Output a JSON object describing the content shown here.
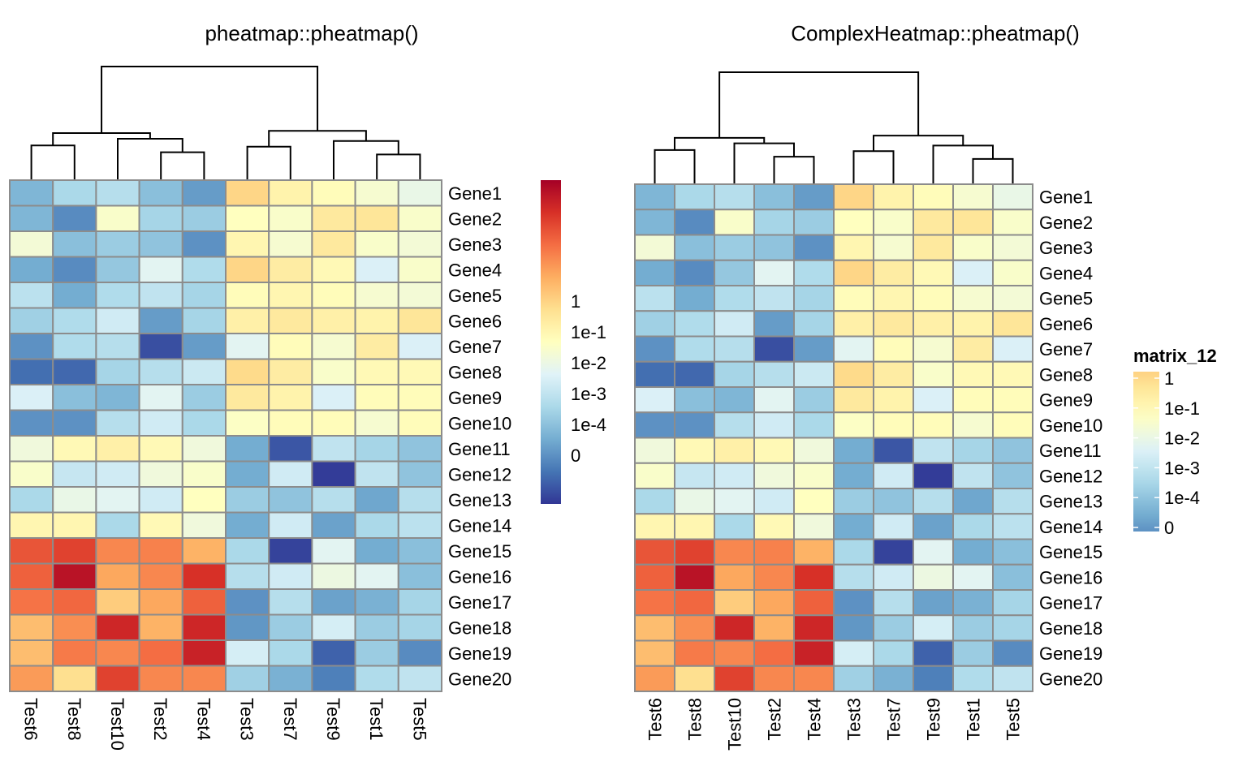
{
  "chart_data": [
    {
      "type": "heatmap",
      "title": "pheatmap::pheatmap()",
      "rows": [
        "Gene1",
        "Gene2",
        "Gene3",
        "Gene4",
        "Gene5",
        "Gene6",
        "Gene7",
        "Gene8",
        "Gene9",
        "Gene10",
        "Gene11",
        "Gene12",
        "Gene13",
        "Gene14",
        "Gene15",
        "Gene16",
        "Gene17",
        "Gene18",
        "Gene19",
        "Gene20"
      ],
      "columns": [
        "Test6",
        "Test8",
        "Test10",
        "Test2",
        "Test4",
        "Test3",
        "Test7",
        "Test9",
        "Test1",
        "Test5"
      ],
      "column_label_orientation": "rotated-clockwise",
      "column_dendrogram": {
        "order": [
          "Test6",
          "Test8",
          "Test10",
          "Test2",
          "Test4",
          "Test3",
          "Test7",
          "Test9",
          "Test1",
          "Test5"
        ],
        "merges": [
          [
            0,
            1,
            0.3
          ],
          [
            3,
            4,
            0.24
          ],
          [
            2,
            "3-4",
            0.36
          ],
          [
            "0-1",
            "2-4",
            0.41
          ],
          [
            5,
            6,
            0.29
          ],
          [
            8,
            9,
            0.22
          ],
          [
            7,
            "8-9",
            0.34
          ],
          [
            "5-6",
            "7-9",
            0.43
          ],
          [
            "0-4",
            "5-9",
            1.0
          ]
        ]
      },
      "color_scale": {
        "palette": [
          "#313695",
          "#4575b4",
          "#74add1",
          "#abd9e9",
          "#e0f3f8",
          "#ffffbf",
          "#fee090",
          "#fdae61",
          "#f46d43",
          "#d73027",
          "#a50026"
        ],
        "legend_ticks": [
          "1",
          "1e-1",
          "1e-2",
          "1e-3",
          "1e-4",
          "0"
        ],
        "legend_title": ""
      },
      "values": [
        [
          0.22,
          0.3,
          0.32,
          0.24,
          0.17,
          0.62,
          0.54,
          0.51,
          0.47,
          0.43
        ],
        [
          0.22,
          0.14,
          0.48,
          0.29,
          0.27,
          0.5,
          0.48,
          0.57,
          0.58,
          0.48
        ],
        [
          0.46,
          0.24,
          0.27,
          0.25,
          0.15,
          0.53,
          0.47,
          0.57,
          0.48,
          0.46
        ],
        [
          0.2,
          0.14,
          0.26,
          0.41,
          0.31,
          0.62,
          0.56,
          0.52,
          0.39,
          0.48
        ],
        [
          0.33,
          0.2,
          0.31,
          0.34,
          0.29,
          0.51,
          0.53,
          0.51,
          0.47,
          0.46
        ],
        [
          0.28,
          0.31,
          0.37,
          0.17,
          0.29,
          0.55,
          0.57,
          0.55,
          0.54,
          0.58
        ],
        [
          0.15,
          0.31,
          0.32,
          0.04,
          0.17,
          0.41,
          0.51,
          0.47,
          0.56,
          0.39
        ],
        [
          0.09,
          0.08,
          0.29,
          0.32,
          0.36,
          0.61,
          0.56,
          0.48,
          0.52,
          0.52
        ],
        [
          0.39,
          0.24,
          0.22,
          0.41,
          0.27,
          0.57,
          0.54,
          0.39,
          0.51,
          0.51
        ],
        [
          0.15,
          0.15,
          0.32,
          0.37,
          0.3,
          0.49,
          0.51,
          0.51,
          0.47,
          0.51
        ],
        [
          0.45,
          0.52,
          0.55,
          0.52,
          0.45,
          0.2,
          0.05,
          0.34,
          0.29,
          0.25
        ],
        [
          0.48,
          0.35,
          0.37,
          0.45,
          0.48,
          0.2,
          0.37,
          0.01,
          0.34,
          0.25
        ],
        [
          0.3,
          0.43,
          0.41,
          0.37,
          0.5,
          0.27,
          0.25,
          0.32,
          0.19,
          0.32
        ],
        [
          0.53,
          0.53,
          0.3,
          0.52,
          0.45,
          0.2,
          0.37,
          0.18,
          0.3,
          0.33
        ],
        [
          0.84,
          0.87,
          0.76,
          0.77,
          0.69,
          0.3,
          0.02,
          0.41,
          0.2,
          0.24
        ],
        [
          0.82,
          0.96,
          0.71,
          0.76,
          0.9,
          0.32,
          0.37,
          0.44,
          0.41,
          0.24
        ],
        [
          0.79,
          0.81,
          0.64,
          0.71,
          0.82,
          0.15,
          0.32,
          0.18,
          0.21,
          0.29
        ],
        [
          0.67,
          0.75,
          0.92,
          0.69,
          0.92,
          0.16,
          0.27,
          0.38,
          0.27,
          0.29
        ],
        [
          0.67,
          0.78,
          0.76,
          0.8,
          0.93,
          0.38,
          0.3,
          0.07,
          0.27,
          0.14
        ],
        [
          0.73,
          0.6,
          0.87,
          0.76,
          0.76,
          0.28,
          0.21,
          0.12,
          0.31,
          0.34
        ]
      ]
    },
    {
      "type": "heatmap",
      "title": "ComplexHeatmap::pheatmap()",
      "rows": [
        "Gene1",
        "Gene2",
        "Gene3",
        "Gene4",
        "Gene5",
        "Gene6",
        "Gene7",
        "Gene8",
        "Gene9",
        "Gene10",
        "Gene11",
        "Gene12",
        "Gene13",
        "Gene14",
        "Gene15",
        "Gene16",
        "Gene17",
        "Gene18",
        "Gene19",
        "Gene20"
      ],
      "columns": [
        "Test6",
        "Test8",
        "Test10",
        "Test2",
        "Test4",
        "Test3",
        "Test7",
        "Test9",
        "Test1",
        "Test5"
      ],
      "column_label_orientation": "rotated-counterclockwise",
      "same_values_as": "pheatmap::pheatmap()",
      "color_scale": {
        "legend_title": "matrix_12",
        "legend_ticks": [
          "1",
          "1e-1",
          "1e-2",
          "1e-3",
          "1e-4",
          "0"
        ],
        "legend_range_levels": [
          0.15,
          0.63
        ]
      }
    }
  ]
}
